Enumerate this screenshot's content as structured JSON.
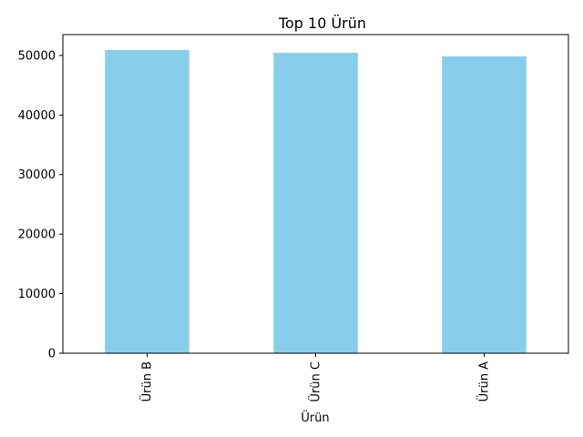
{
  "chart_data": {
    "type": "bar",
    "title": "Top 10 Ürün",
    "xlabel": "Ürün",
    "ylabel": "",
    "categories": [
      "Ürün B",
      "Ürün C",
      "Ürün A"
    ],
    "values": [
      50900,
      50450,
      49850
    ],
    "ylim": [
      0,
      53500
    ],
    "yticks": [
      0,
      10000,
      20000,
      30000,
      40000,
      50000
    ],
    "bar_color": "#87CEEB",
    "grid": false,
    "legend": "none"
  }
}
